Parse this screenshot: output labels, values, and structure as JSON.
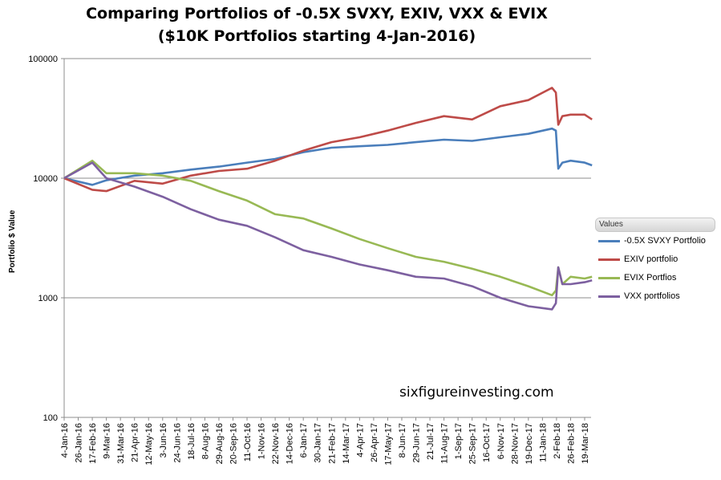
{
  "chart_data": {
    "type": "line",
    "title": "Comparing Portfolios of -0.5X SVXY, EXIV, VXX & EVIX",
    "subtitle": "($10K Portfolios starting 4-Jan-2016)",
    "ylabel": "Portfolio $ Value",
    "y_scale": "log",
    "ylim": [
      100,
      100000
    ],
    "y_ticks": [
      "100000",
      "10000",
      "1000",
      "100"
    ],
    "grid": "horizontal",
    "legend_title": "Values",
    "legend_position": "right",
    "x_tick_labels": [
      "4-Jan-16",
      "26-Jan-16",
      "17-Feb-16",
      "9-Mar-16",
      "31-Mar-16",
      "21-Apr-16",
      "12-May-16",
      "3-Jun-16",
      "24-Jun-16",
      "18-Jul-16",
      "8-Aug-16",
      "29-Aug-16",
      "20-Sep-16",
      "11-Oct-16",
      "1-Nov-16",
      "22-Nov-16",
      "14-Dec-16",
      "6-Jan-17",
      "30-Jan-17",
      "21-Feb-17",
      "14-Mar-17",
      "4-Apr-17",
      "26-Apr-17",
      "17-May-17",
      "8-Jun-17",
      "29-Jun-17",
      "21-Jul-17",
      "11-Aug-17",
      "1-Sep-17",
      "25-Sep-17",
      "16-Oct-17",
      "6-Nov-17",
      "28-Nov-17",
      "19-Dec-17",
      "11-Jan-18",
      "2-Feb-18",
      "26-Feb-18",
      "19-Mar-18"
    ],
    "x": [
      "4-Jan-16",
      "17-Feb-16",
      "9-Mar-16",
      "21-Apr-16",
      "3-Jun-16",
      "18-Jul-16",
      "29-Aug-16",
      "11-Oct-16",
      "22-Nov-16",
      "6-Jan-17",
      "21-Feb-17",
      "4-Apr-17",
      "17-May-17",
      "29-Jun-17",
      "11-Aug-17",
      "25-Sep-17",
      "6-Nov-17",
      "19-Dec-17",
      "26-Jan-18",
      "1-Feb-18",
      "5-Feb-18",
      "12-Feb-18",
      "26-Feb-18",
      "19-Mar-18",
      "30-Mar-18"
    ],
    "series": [
      {
        "name": "-0.5X SVXY Portfolio",
        "color": "#4a7ebb",
        "values": [
          10000,
          8800,
          9600,
          10500,
          11000,
          11800,
          12500,
          13500,
          14500,
          16500,
          18000,
          18500,
          19000,
          20000,
          21000,
          20500,
          22000,
          23500,
          26000,
          25000,
          12000,
          13500,
          14000,
          13500,
          12800
        ]
      },
      {
        "name": "EXIV portfolio",
        "color": "#be4b48",
        "values": [
          10000,
          8000,
          7800,
          9500,
          9000,
          10500,
          11500,
          12000,
          14000,
          17000,
          20000,
          22000,
          25000,
          29000,
          33000,
          31000,
          40000,
          45000,
          57000,
          52000,
          28000,
          33000,
          34000,
          34000,
          31000
        ]
      },
      {
        "name": "EVIX Portfios",
        "color": "#98b954",
        "values": [
          10000,
          14000,
          11000,
          11000,
          10500,
          9500,
          7800,
          6500,
          5000,
          4600,
          3800,
          3100,
          2600,
          2200,
          2000,
          1750,
          1500,
          1250,
          1050,
          1150,
          1800,
          1300,
          1500,
          1450,
          1500
        ]
      },
      {
        "name": "VXX portfolios",
        "color": "#7d60a0",
        "values": [
          10000,
          13500,
          10000,
          8500,
          7000,
          5500,
          4500,
          4000,
          3200,
          2500,
          2200,
          1900,
          1700,
          1500,
          1450,
          1250,
          1000,
          850,
          800,
          900,
          1800,
          1300,
          1300,
          1350,
          1400
        ]
      }
    ]
  },
  "watermark": "sixfigureinvesting.com"
}
